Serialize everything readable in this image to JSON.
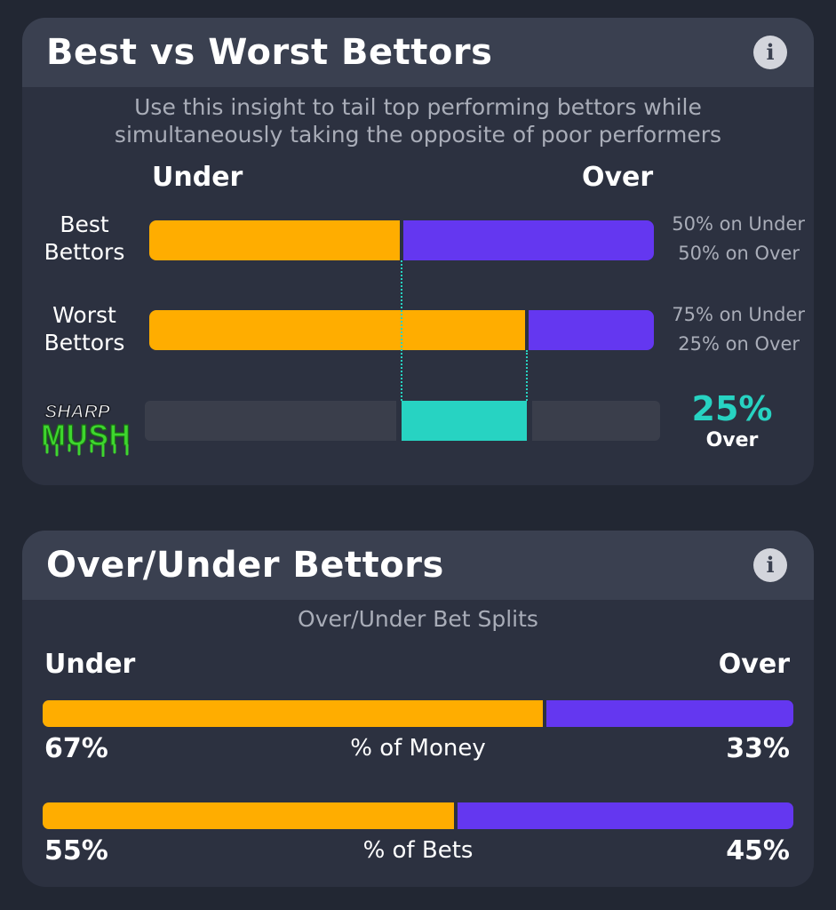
{
  "colors": {
    "background": "#222733",
    "card": "#2c3140",
    "card_header": "#3a4050",
    "under": "#ffad00",
    "over": "#6437f0",
    "accent": "#27d3c2"
  },
  "best_worst": {
    "title": "Best vs Worst Bettors",
    "info_icon": "info-icon",
    "subtitle_line1": "Use this insight to tail top performing bettors while",
    "subtitle_line2": "simultaneously taking the opposite of poor performers",
    "under_label": "Under",
    "over_label": "Over",
    "rows": [
      {
        "label_line1": "Best",
        "label_line2": "Bettors",
        "under_pct": 50,
        "over_pct": 50,
        "stat_line1": "50% on Under",
        "stat_line2": "50% on Over"
      },
      {
        "label_line1": "Worst",
        "label_line2": "Bettors",
        "under_pct": 75,
        "over_pct": 25,
        "stat_line1": "75% on Under",
        "stat_line2": "25% on Over"
      }
    ],
    "logo_top": "SHARP",
    "logo_bottom": "MUSH",
    "difference_value": "25%",
    "difference_side": "Over"
  },
  "over_under": {
    "title": "Over/Under Bettors",
    "info_icon": "info-icon",
    "subtitle": "Over/Under Bet Splits",
    "under_label": "Under",
    "over_label": "Over",
    "splits": [
      {
        "metric": "% of Money",
        "under_pct": 67,
        "over_pct": 33,
        "under_text": "67%",
        "over_text": "33%"
      },
      {
        "metric": "% of Bets",
        "under_pct": 55,
        "over_pct": 45,
        "under_text": "55%",
        "over_text": "45%"
      }
    ]
  }
}
